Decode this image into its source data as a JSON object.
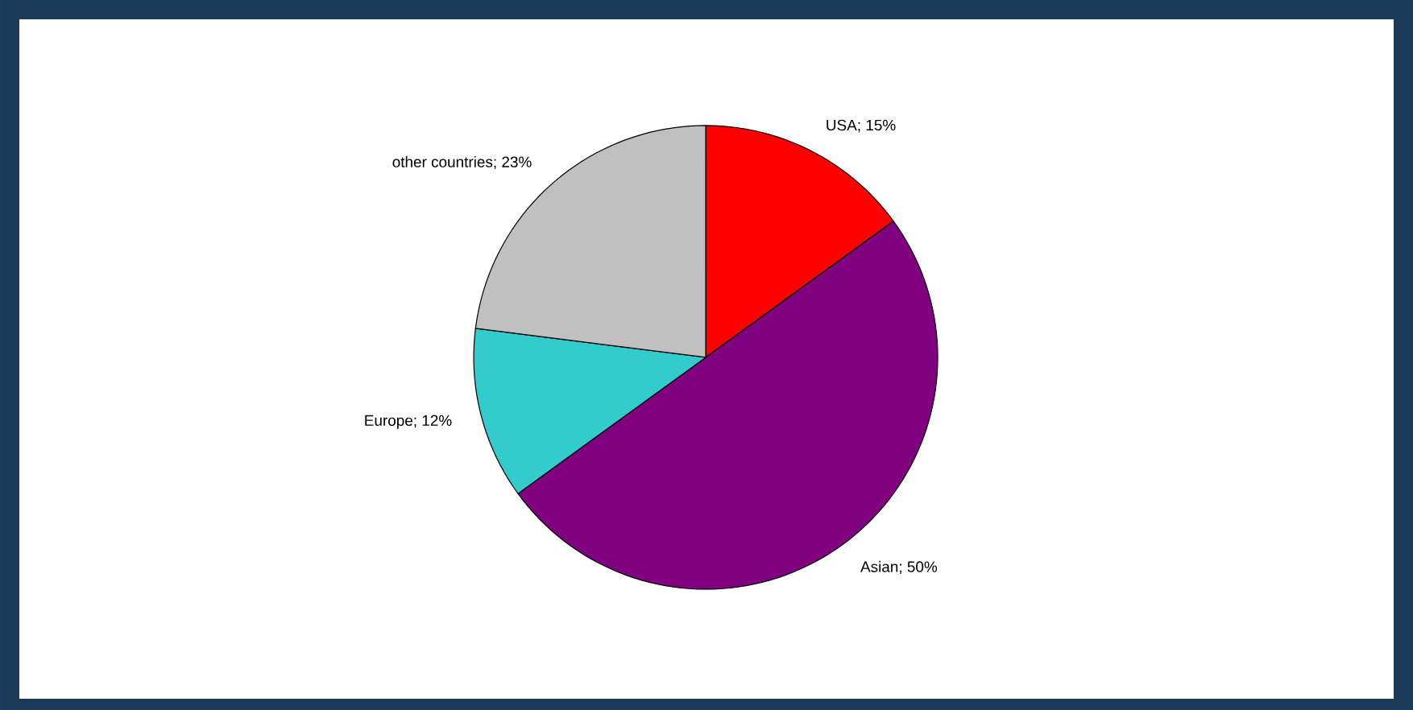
{
  "chart_data": {
    "type": "pie",
    "categories": [
      null,
      null,
      null,
      null
    ],
    "values": [
      15,
      50,
      12,
      23
    ],
    "colors": [
      "#ff0000",
      "#800080",
      "#33cccc",
      "#c0c0c0"
    ],
    "value_labels": [
      "USA; 15%",
      "Asian; 50%",
      "Europe; 12%",
      "other countries; 23%"
    ]
  }
}
